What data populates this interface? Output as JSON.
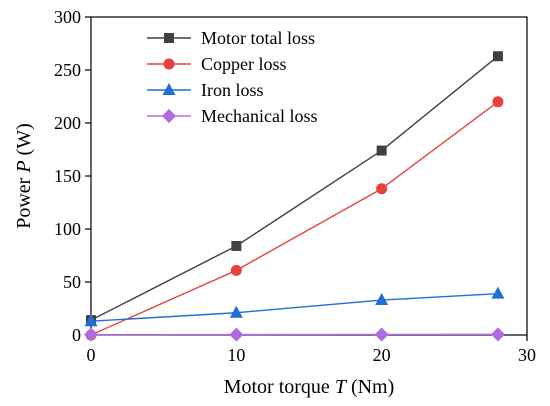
{
  "chart_data": {
    "type": "line",
    "xlabel": "Motor torque ",
    "xlabel_var": "T",
    "xlabel_unit": " (Nm)",
    "ylabel": "Power ",
    "ylabel_var": "P",
    "ylabel_unit": " (W)",
    "xlim": [
      0,
      30
    ],
    "ylim": [
      0,
      300
    ],
    "xticks": [
      0,
      10,
      20,
      30
    ],
    "yticks": [
      0,
      50,
      100,
      150,
      200,
      250,
      300
    ],
    "grid": false,
    "legend_position": "top-left",
    "x": [
      0,
      10,
      20,
      28
    ],
    "series": [
      {
        "name": "Motor total loss",
        "color": "#404040",
        "marker": "square",
        "values": [
          14,
          84,
          174,
          263
        ]
      },
      {
        "name": "Copper loss",
        "color": "#e8413c",
        "marker": "circle",
        "values": [
          0,
          61,
          138,
          220
        ]
      },
      {
        "name": "Iron loss",
        "color": "#1f6fd6",
        "marker": "triangle",
        "values": [
          13,
          21,
          33,
          39
        ]
      },
      {
        "name": "Mechanical loss",
        "color": "#b06be0",
        "marker": "diamond",
        "values": [
          0.3,
          0.4,
          0.5,
          0.6
        ]
      }
    ]
  }
}
